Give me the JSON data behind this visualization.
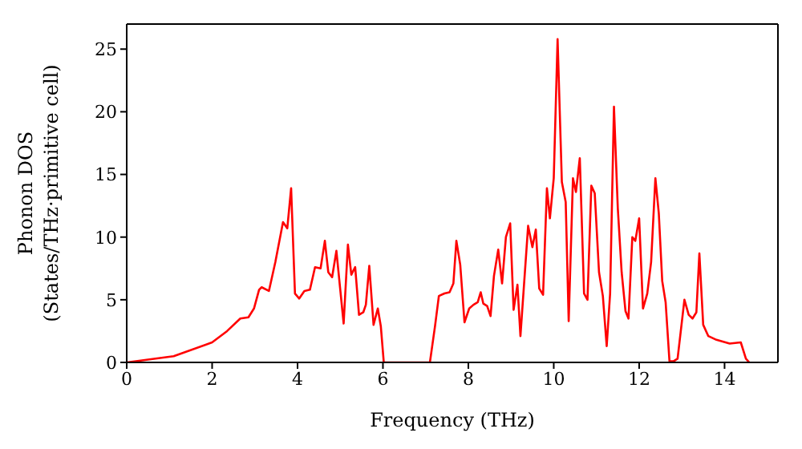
{
  "chart_data": {
    "type": "line",
    "xlabel": "Frequency (THz)",
    "ylabel": "Phonon DOS\n(States/THz·primitive cell)",
    "xlim": [
      0,
      15.25
    ],
    "xticks": [
      0,
      2,
      4,
      6,
      8,
      10,
      12,
      14
    ],
    "ylim": [
      0,
      27
    ],
    "yticks": [
      0,
      5,
      10,
      15,
      20,
      25
    ],
    "grid": false,
    "marker": "none",
    "line_style": "solid",
    "series": [
      {
        "color": "#ff0000",
        "x": [
          0,
          1.1,
          2.0,
          2.35,
          2.66,
          2.85,
          2.98,
          3.1,
          3.16,
          3.33,
          3.48,
          3.66,
          3.76,
          3.85,
          3.94,
          4.04,
          4.16,
          4.29,
          4.41,
          4.54,
          4.64,
          4.72,
          4.81,
          4.91,
          5.08,
          5.18,
          5.26,
          5.35,
          5.44,
          5.54,
          5.6,
          5.68,
          5.78,
          5.88,
          5.95,
          6.02,
          7.1,
          7.22,
          7.31,
          7.44,
          7.56,
          7.65,
          7.72,
          7.81,
          7.91,
          8.02,
          8.12,
          8.22,
          8.29,
          8.35,
          8.44,
          8.52,
          8.6,
          8.7,
          8.79,
          8.88,
          8.98,
          9.06,
          9.15,
          9.22,
          9.4,
          9.5,
          9.58,
          9.66,
          9.75,
          9.84,
          9.91,
          10.0,
          10.09,
          10.19,
          10.28,
          10.35,
          10.45,
          10.52,
          10.61,
          10.71,
          10.79,
          10.88,
          10.96,
          11.06,
          11.15,
          11.24,
          11.32,
          11.41,
          11.5,
          11.59,
          11.68,
          11.75,
          11.84,
          11.91,
          12.0,
          12.09,
          12.19,
          12.28,
          12.38,
          12.46,
          12.54,
          12.62,
          12.71,
          12.81,
          12.9,
          13.06,
          13.16,
          13.25,
          13.34,
          13.41,
          13.5,
          13.62,
          13.81,
          14.12,
          14.38,
          14.5,
          14.58
        ],
        "values": [
          0,
          0.5,
          1.6,
          2.5,
          3.5,
          3.6,
          4.3,
          5.8,
          6.0,
          5.7,
          8.0,
          11.2,
          10.7,
          13.9,
          5.5,
          5.1,
          5.7,
          5.8,
          7.6,
          7.5,
          9.7,
          7.2,
          6.8,
          8.9,
          3.1,
          9.4,
          7.0,
          7.6,
          3.8,
          4.0,
          4.6,
          7.7,
          3.0,
          4.3,
          2.9,
          0,
          0,
          2.9,
          5.3,
          5.5,
          5.6,
          6.3,
          9.7,
          7.8,
          3.2,
          4.3,
          4.6,
          4.8,
          5.6,
          4.7,
          4.5,
          3.7,
          6.9,
          9.0,
          6.3,
          10.0,
          11.1,
          4.2,
          6.2,
          2.1,
          10.9,
          9.2,
          10.6,
          5.9,
          5.4,
          13.9,
          11.5,
          14.7,
          25.8,
          14.4,
          12.8,
          3.3,
          14.7,
          13.6,
          16.3,
          5.5,
          5.0,
          14.1,
          13.5,
          7.2,
          5.3,
          1.3,
          5.5,
          20.4,
          12.3,
          7.2,
          4.1,
          3.5,
          10.0,
          9.7,
          11.5,
          4.3,
          5.5,
          8.0,
          14.7,
          11.9,
          6.5,
          4.8,
          0.1,
          0.1,
          0.3,
          5.0,
          3.8,
          3.5,
          4.0,
          8.7,
          3.0,
          2.1,
          1.8,
          1.5,
          1.6,
          0.3,
          0
        ]
      }
    ]
  }
}
